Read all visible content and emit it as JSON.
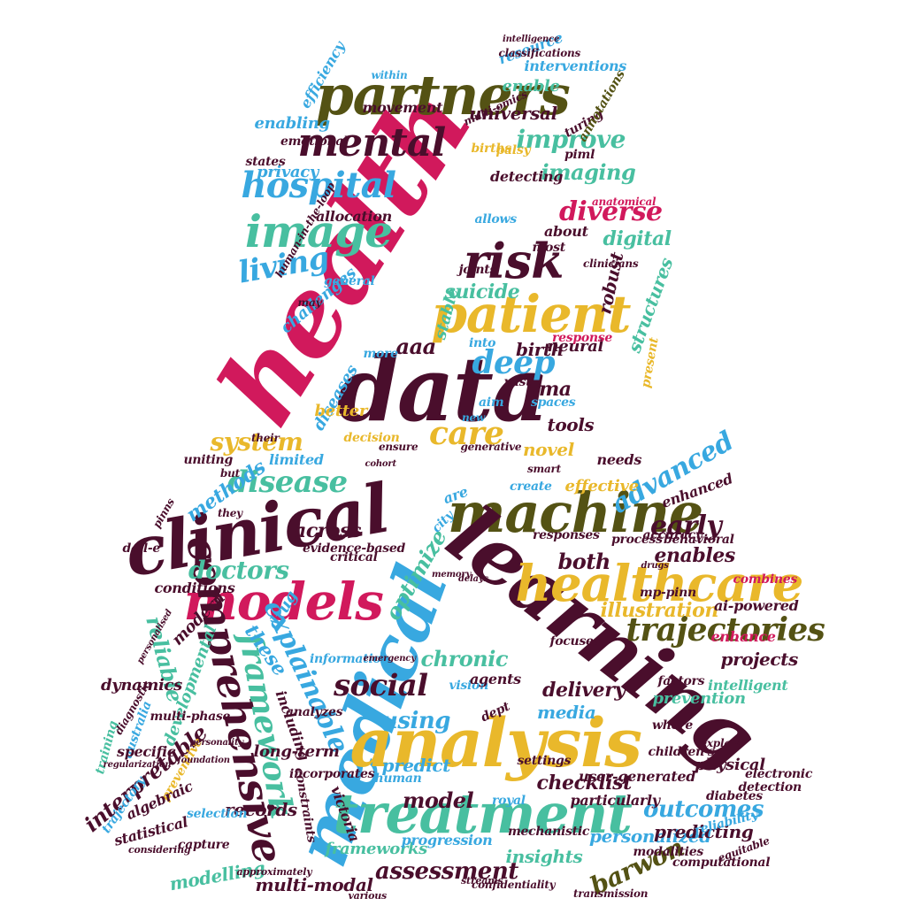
{
  "palette": {
    "crimson": "#d1195c",
    "plum": "#4a0e2c",
    "sky": "#38a8e0",
    "gold": "#e9b82b",
    "teal": "#48bfa0",
    "olive": "#545214"
  },
  "words": [
    {
      "text": "health",
      "color": "crimson"
    },
    {
      "text": "data",
      "color": "plum"
    },
    {
      "text": "patient",
      "color": "gold"
    },
    {
      "text": "partners",
      "color": "olive"
    },
    {
      "text": "image",
      "color": "teal"
    },
    {
      "text": "mental",
      "color": "plum"
    },
    {
      "text": "risk",
      "color": "plum"
    },
    {
      "text": "hospital",
      "color": "sky"
    },
    {
      "text": "living",
      "color": "sky"
    },
    {
      "text": "care",
      "color": "gold"
    },
    {
      "text": "deep",
      "color": "sky"
    },
    {
      "text": "improve",
      "color": "teal"
    },
    {
      "text": "imaging",
      "color": "teal"
    },
    {
      "text": "diverse",
      "color": "crimson"
    },
    {
      "text": "digital",
      "color": "teal"
    },
    {
      "text": "robust",
      "color": "plum"
    },
    {
      "text": "suicide",
      "color": "teal"
    },
    {
      "text": "structures",
      "color": "teal"
    },
    {
      "text": "clinicians",
      "color": "plum"
    },
    {
      "text": "neural",
      "color": "plum"
    },
    {
      "text": "aaa",
      "color": "plum"
    },
    {
      "text": "gma",
      "color": "plum"
    },
    {
      "text": "tools",
      "color": "plum"
    },
    {
      "text": "novel",
      "color": "gold"
    },
    {
      "text": "decision",
      "color": "gold"
    },
    {
      "text": "diseases",
      "color": "sky"
    },
    {
      "text": "allocation",
      "color": "plum"
    },
    {
      "text": "privacy",
      "color": "sky"
    },
    {
      "text": "states",
      "color": "plum"
    },
    {
      "text": "emotional",
      "color": "plum"
    },
    {
      "text": "enabling",
      "color": "sky"
    },
    {
      "text": "movement",
      "color": "plum"
    },
    {
      "text": "universal",
      "color": "plum"
    },
    {
      "text": "enable",
      "color": "teal"
    },
    {
      "text": "interventions",
      "color": "sky"
    },
    {
      "text": "resource",
      "color": "sky"
    },
    {
      "text": "detecting",
      "color": "plum"
    },
    {
      "text": "piml",
      "color": "plum"
    },
    {
      "text": "births",
      "color": "gold"
    },
    {
      "text": "palsy",
      "color": "gold"
    },
    {
      "text": "challenges",
      "color": "sky"
    },
    {
      "text": "joints",
      "color": "plum"
    },
    {
      "text": "most",
      "color": "plum"
    },
    {
      "text": "about",
      "color": "plum"
    },
    {
      "text": "birth",
      "color": "plum"
    },
    {
      "text": "better",
      "color": "gold"
    },
    {
      "text": "machine",
      "color": "olive"
    },
    {
      "text": "clinical",
      "color": "plum"
    },
    {
      "text": "learning",
      "color": "plum"
    },
    {
      "text": "medical",
      "color": "sky"
    },
    {
      "text": "analysis",
      "color": "gold"
    },
    {
      "text": "healthcare",
      "color": "gold"
    },
    {
      "text": "treatment",
      "color": "teal"
    },
    {
      "text": "models",
      "color": "crimson"
    },
    {
      "text": "comprehensive",
      "color": "plum"
    },
    {
      "text": "framework",
      "color": "teal"
    },
    {
      "text": "trajectories",
      "color": "olive"
    },
    {
      "text": "disease",
      "color": "teal"
    },
    {
      "text": "advanced",
      "color": "sky"
    },
    {
      "text": "early",
      "color": "plum"
    },
    {
      "text": "system",
      "color": "gold"
    },
    {
      "text": "methods",
      "color": "sky"
    },
    {
      "text": "across",
      "color": "plum"
    },
    {
      "text": "limited",
      "color": "sky"
    },
    {
      "text": "doctors",
      "color": "teal"
    },
    {
      "text": "both",
      "color": "plum"
    },
    {
      "text": "enables",
      "color": "plum"
    },
    {
      "text": "explainable",
      "color": "sky"
    },
    {
      "text": "optimize",
      "color": "teal"
    },
    {
      "text": "reliable",
      "color": "teal"
    },
    {
      "text": "these",
      "color": "sky"
    },
    {
      "text": "social",
      "color": "plum"
    },
    {
      "text": "chronic",
      "color": "teal"
    },
    {
      "text": "using",
      "color": "sky"
    },
    {
      "text": "illustration",
      "color": "gold"
    },
    {
      "text": "projects",
      "color": "plum"
    },
    {
      "text": "intelligent",
      "color": "teal"
    },
    {
      "text": "delivery",
      "color": "plum"
    },
    {
      "text": "media",
      "color": "sky"
    },
    {
      "text": "outcomes",
      "color": "sky"
    },
    {
      "text": "barwon",
      "color": "olive"
    },
    {
      "text": "personalized",
      "color": "sky"
    },
    {
      "text": "checklist",
      "color": "plum"
    },
    {
      "text": "model",
      "color": "plum"
    },
    {
      "text": "predict",
      "color": "sky"
    },
    {
      "text": "assessment",
      "color": "plum"
    },
    {
      "text": "frameworks",
      "color": "teal"
    },
    {
      "text": "insights",
      "color": "teal"
    },
    {
      "text": "records",
      "color": "plum"
    },
    {
      "text": "interpretable",
      "color": "plum"
    },
    {
      "text": "modelling",
      "color": "teal"
    },
    {
      "text": "multi-modal",
      "color": "plum"
    },
    {
      "text": "long-term",
      "color": "plum"
    },
    {
      "text": "dynamics",
      "color": "plum"
    },
    {
      "text": "predicting",
      "color": "plum"
    },
    {
      "text": "physical",
      "color": "plum"
    },
    {
      "text": "diabetes",
      "color": "plum"
    },
    {
      "text": "modalities",
      "color": "plum"
    },
    {
      "text": "computational",
      "color": "plum"
    },
    {
      "text": "selection",
      "color": "sky"
    },
    {
      "text": "statistical",
      "color": "plum"
    },
    {
      "text": "capture",
      "color": "plum"
    },
    {
      "text": "effective",
      "color": "gold"
    },
    {
      "text": "enhanced",
      "color": "plum"
    },
    {
      "text": "needs",
      "color": "plum"
    },
    {
      "text": "create",
      "color": "sky"
    },
    {
      "text": "are",
      "color": "sky"
    },
    {
      "text": "city",
      "color": "sky"
    },
    {
      "text": "victoria",
      "color": "plum"
    },
    {
      "text": "human",
      "color": "sky"
    },
    {
      "text": "drug",
      "color": "sky"
    },
    {
      "text": "vision",
      "color": "sky"
    },
    {
      "text": "agents",
      "color": "plum"
    },
    {
      "text": "dept",
      "color": "plum"
    },
    {
      "text": "australia",
      "color": "sky"
    },
    {
      "text": "preventive",
      "color": "gold"
    },
    {
      "text": "training",
      "color": "teal"
    },
    {
      "text": "specific",
      "color": "plum"
    },
    {
      "text": "algebraic",
      "color": "plum"
    },
    {
      "text": "trajectory",
      "color": "sky"
    },
    {
      "text": "developmental",
      "color": "teal"
    },
    {
      "text": "modern",
      "color": "plum"
    },
    {
      "text": "conditions",
      "color": "plum"
    },
    {
      "text": "including",
      "color": "plum"
    },
    {
      "text": "prevention",
      "color": "teal"
    },
    {
      "text": "enhance",
      "color": "crimson"
    },
    {
      "text": "ai-powered",
      "color": "plum"
    },
    {
      "text": "combines",
      "color": "crimson"
    },
    {
      "text": "detection",
      "color": "plum"
    },
    {
      "text": "reliability",
      "color": "sky"
    },
    {
      "text": "electronic",
      "color": "plum"
    },
    {
      "text": "particularly",
      "color": "plum"
    },
    {
      "text": "settings",
      "color": "plum"
    },
    {
      "text": "royal",
      "color": "sky"
    },
    {
      "text": "progression",
      "color": "sky"
    },
    {
      "text": "mechanistic",
      "color": "plum"
    },
    {
      "text": "constraints",
      "color": "plum"
    },
    {
      "text": "accuracy",
      "color": "plum"
    },
    {
      "text": "process",
      "color": "plum"
    },
    {
      "text": "behavioral",
      "color": "plum"
    },
    {
      "text": "responses",
      "color": "plum"
    },
    {
      "text": "where",
      "color": "plum"
    },
    {
      "text": "factors",
      "color": "plum"
    },
    {
      "text": "focuses",
      "color": "plum"
    },
    {
      "text": "uniting",
      "color": "plum"
    },
    {
      "text": "their",
      "color": "plum"
    },
    {
      "text": "but",
      "color": "plum"
    },
    {
      "text": "they",
      "color": "plum"
    },
    {
      "text": "critical",
      "color": "plum"
    },
    {
      "text": "information",
      "color": "sky"
    },
    {
      "text": "evidence-based",
      "color": "plum"
    },
    {
      "text": "mp-pinn",
      "color": "plum"
    },
    {
      "text": "user-generated",
      "color": "plum"
    },
    {
      "text": "children's",
      "color": "plum"
    },
    {
      "text": "incorporates",
      "color": "plum"
    },
    {
      "text": "analyzes",
      "color": "plum"
    },
    {
      "text": "multi-phase",
      "color": "plum"
    },
    {
      "text": "into",
      "color": "sky"
    },
    {
      "text": "vast",
      "color": "plum"
    },
    {
      "text": "aim",
      "color": "sky"
    },
    {
      "text": "new",
      "color": "sky"
    },
    {
      "text": "ensure",
      "color": "plum"
    },
    {
      "text": "smart",
      "color": "plum"
    },
    {
      "text": "more",
      "color": "sky"
    },
    {
      "text": "stable",
      "color": "teal"
    },
    {
      "text": "general",
      "color": "sky"
    },
    {
      "text": "may",
      "color": "plum"
    },
    {
      "text": "within",
      "color": "sky"
    },
    {
      "text": "spaces",
      "color": "sky"
    },
    {
      "text": "allows",
      "color": "sky"
    },
    {
      "text": "response",
      "color": "crimson"
    },
    {
      "text": "present",
      "color": "gold"
    },
    {
      "text": "turing",
      "color": "plum"
    },
    {
      "text": "annotations",
      "color": "olive"
    },
    {
      "text": "multi-omics",
      "color": "plum"
    },
    {
      "text": "efficiency",
      "color": "sky"
    },
    {
      "text": "anatomical",
      "color": "crimson"
    },
    {
      "text": "explain",
      "color": "plum"
    },
    {
      "text": "confidentiality",
      "color": "plum"
    },
    {
      "text": "transmission",
      "color": "plum"
    },
    {
      "text": "various",
      "color": "plum"
    },
    {
      "text": "approximately",
      "color": "plum"
    },
    {
      "text": "considering",
      "color": "plum"
    },
    {
      "text": "dall-e",
      "color": "plum"
    },
    {
      "text": "human-in-the-loop",
      "color": "plum"
    },
    {
      "text": "generative",
      "color": "plum"
    },
    {
      "text": "classifications",
      "color": "plum"
    },
    {
      "text": "intelligence",
      "color": "plum"
    },
    {
      "text": "memory",
      "color": "plum"
    },
    {
      "text": "delays",
      "color": "plum"
    },
    {
      "text": "emergency",
      "color": "plum"
    },
    {
      "text": "foundation",
      "color": "plum"
    },
    {
      "text": "personality",
      "color": "plum"
    },
    {
      "text": "regularization",
      "color": "plum"
    },
    {
      "text": "streams",
      "color": "plum"
    },
    {
      "text": "equitable",
      "color": "plum"
    },
    {
      "text": "pinns",
      "color": "plum"
    },
    {
      "text": "cohort",
      "color": "plum"
    },
    {
      "text": "drugs",
      "color": "plum"
    },
    {
      "text": "diagnostic",
      "color": "plum"
    },
    {
      "text": "personalised",
      "color": "plum"
    }
  ]
}
